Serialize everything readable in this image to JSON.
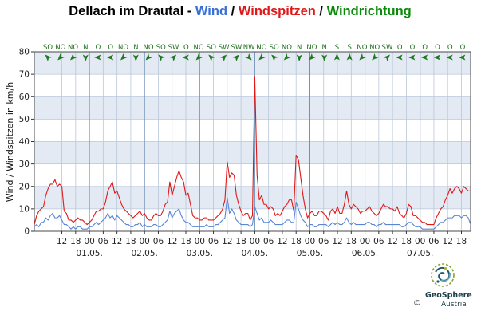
{
  "chart_data": {
    "type": "line",
    "title_parts": [
      {
        "text": "Dellach im Drautal - ",
        "color": "#000000"
      },
      {
        "text": "Wind",
        "color": "#3a6fd8"
      },
      {
        "text": " / ",
        "color": "#000000"
      },
      {
        "text": "Windspitzen",
        "color": "#e01818"
      },
      {
        "text": " / ",
        "color": "#000000"
      },
      {
        "text": "Windrichtung",
        "color": "#0a8a0a"
      }
    ],
    "ylabel": "Wind / Windspitzen in km/h",
    "ylim": [
      0,
      80
    ],
    "yticks": [
      "0",
      "10",
      "20",
      "30",
      "40",
      "50",
      "60",
      "70",
      "80"
    ],
    "x_ticks": [
      "12",
      "18",
      "00",
      "06",
      "12",
      "18",
      "00",
      "06",
      "12",
      "18",
      "00",
      "06",
      "12",
      "18",
      "00",
      "06",
      "12",
      "18",
      "00",
      "06",
      "12",
      "18",
      "00",
      "06",
      "12",
      "18",
      "00",
      "06",
      "12",
      "18"
    ],
    "x_tick_hours": [
      12,
      18,
      24,
      30,
      36,
      42,
      48,
      54,
      60,
      66,
      72,
      78,
      84,
      90,
      96,
      102,
      108,
      114,
      120,
      126,
      132,
      138,
      144,
      150,
      156,
      162,
      168,
      174,
      180,
      186
    ],
    "date_labels": [
      {
        "label": "01.05.",
        "hour": 24
      },
      {
        "label": "02.05.",
        "hour": 48
      },
      {
        "label": "03.05.",
        "hour": 72
      },
      {
        "label": "04.05.",
        "hour": 96
      },
      {
        "label": "05.05.",
        "hour": 120
      },
      {
        "label": "06.05.",
        "hour": 144
      },
      {
        "label": "07.05.",
        "hour": 168
      }
    ],
    "x_range_hours": [
      0,
      190
    ],
    "series": [
      {
        "name": "Windspitzen",
        "color": "#e01818",
        "x": [
          0,
          1,
          2,
          3,
          4,
          5,
          6,
          7,
          8,
          9,
          10,
          11,
          12,
          13,
          14,
          15,
          16,
          17,
          18,
          19,
          20,
          21,
          22,
          23,
          24,
          25,
          26,
          27,
          28,
          29,
          30,
          31,
          32,
          33,
          34,
          35,
          36,
          37,
          38,
          39,
          40,
          41,
          42,
          43,
          44,
          45,
          46,
          47,
          48,
          49,
          50,
          51,
          52,
          53,
          54,
          55,
          56,
          57,
          58,
          59,
          60,
          61,
          62,
          63,
          64,
          65,
          66,
          67,
          68,
          69,
          70,
          71,
          72,
          73,
          74,
          75,
          76,
          77,
          78,
          79,
          80,
          81,
          82,
          83,
          84,
          85,
          86,
          87,
          88,
          89,
          90,
          91,
          92,
          93,
          94,
          95,
          96,
          97,
          98,
          99,
          100,
          101,
          102,
          103,
          104,
          105,
          106,
          107,
          108,
          109,
          110,
          111,
          112,
          113,
          114,
          115,
          116,
          117,
          118,
          119,
          120,
          121,
          122,
          123,
          124,
          125,
          126,
          127,
          128,
          129,
          130,
          131,
          132,
          133,
          134,
          135,
          136,
          137,
          138,
          139,
          140,
          141,
          142,
          143,
          144,
          145,
          146,
          147,
          148,
          149,
          150,
          151,
          152,
          153,
          154,
          155,
          156,
          157,
          158,
          159,
          160,
          161,
          162,
          163,
          164,
          165,
          166,
          167,
          168,
          169,
          170,
          171,
          172,
          173,
          174,
          175,
          176,
          177,
          178,
          179,
          180,
          181,
          182,
          183,
          184,
          185,
          186,
          187,
          188,
          189,
          190
        ],
        "values": [
          3,
          7,
          9,
          10,
          11,
          16,
          19,
          21,
          21,
          23,
          20,
          21,
          20,
          9,
          8,
          5,
          5,
          4,
          5,
          6,
          5,
          5,
          4,
          3,
          4,
          5,
          7,
          9,
          9,
          10,
          10,
          13,
          18,
          20,
          22,
          17,
          18,
          15,
          12,
          10,
          9,
          8,
          7,
          6,
          7,
          8,
          9,
          7,
          8,
          6,
          5,
          5,
          7,
          8,
          7,
          7,
          9,
          12,
          13,
          22,
          16,
          20,
          24,
          27,
          24,
          22,
          16,
          17,
          12,
          7,
          6,
          6,
          5,
          5,
          6,
          6,
          5,
          5,
          5,
          6,
          7,
          8,
          10,
          14,
          31,
          24,
          26,
          25,
          16,
          12,
          9,
          7,
          8,
          8,
          5,
          7,
          69,
          25,
          14,
          16,
          12,
          12,
          10,
          11,
          10,
          7,
          8,
          7,
          9,
          11,
          12,
          14,
          14,
          9,
          34,
          32,
          24,
          16,
          10,
          6,
          8,
          9,
          7,
          7,
          9,
          9,
          8,
          7,
          5,
          9,
          10,
          8,
          11,
          8,
          8,
          12,
          18,
          12,
          10,
          12,
          11,
          10,
          8,
          9,
          9,
          10,
          11,
          9,
          8,
          7,
          8,
          10,
          12,
          11,
          11,
          10,
          10,
          9,
          11,
          8,
          7,
          6,
          8,
          12,
          11,
          7,
          7,
          6,
          5,
          4,
          4,
          3,
          3,
          3,
          3,
          6,
          8,
          10,
          11,
          14,
          16,
          19,
          17,
          19,
          20,
          19,
          17,
          20,
          19,
          18,
          18
        ]
      },
      {
        "name": "Wind",
        "color": "#5a86d6",
        "x": [
          0,
          1,
          2,
          3,
          4,
          5,
          6,
          7,
          8,
          9,
          10,
          11,
          12,
          13,
          14,
          15,
          16,
          17,
          18,
          19,
          20,
          21,
          22,
          23,
          24,
          25,
          26,
          27,
          28,
          29,
          30,
          31,
          32,
          33,
          34,
          35,
          36,
          37,
          38,
          39,
          40,
          41,
          42,
          43,
          44,
          45,
          46,
          47,
          48,
          49,
          50,
          51,
          52,
          53,
          54,
          55,
          56,
          57,
          58,
          59,
          60,
          61,
          62,
          63,
          64,
          65,
          66,
          67,
          68,
          69,
          70,
          71,
          72,
          73,
          74,
          75,
          76,
          77,
          78,
          79,
          80,
          81,
          82,
          83,
          84,
          85,
          86,
          87,
          88,
          89,
          90,
          91,
          92,
          93,
          94,
          95,
          96,
          97,
          98,
          99,
          100,
          101,
          102,
          103,
          104,
          105,
          106,
          107,
          108,
          109,
          110,
          111,
          112,
          113,
          114,
          115,
          116,
          117,
          118,
          119,
          120,
          121,
          122,
          123,
          124,
          125,
          126,
          127,
          128,
          129,
          130,
          131,
          132,
          133,
          134,
          135,
          136,
          137,
          138,
          139,
          140,
          141,
          142,
          143,
          144,
          145,
          146,
          147,
          148,
          149,
          150,
          151,
          152,
          153,
          154,
          155,
          156,
          157,
          158,
          159,
          160,
          161,
          162,
          163,
          164,
          165,
          166,
          167,
          168,
          169,
          170,
          171,
          172,
          173,
          174,
          175,
          176,
          177,
          178,
          179,
          180,
          181,
          182,
          183,
          184,
          185,
          186,
          187,
          188,
          189,
          190
        ],
        "values": [
          2,
          3,
          2,
          4,
          4,
          6,
          5,
          7,
          8,
          6,
          6,
          7,
          5,
          3,
          3,
          2,
          1,
          2,
          1,
          2,
          2,
          1,
          1,
          1,
          2,
          2,
          3,
          4,
          3,
          4,
          5,
          6,
          8,
          6,
          7,
          5,
          7,
          6,
          5,
          4,
          3,
          3,
          2,
          2,
          3,
          3,
          4,
          2,
          3,
          2,
          2,
          2,
          3,
          3,
          2,
          2,
          3,
          4,
          5,
          9,
          6,
          8,
          9,
          10,
          7,
          5,
          4,
          4,
          3,
          2,
          2,
          2,
          2,
          2,
          2,
          3,
          2,
          2,
          2,
          3,
          3,
          4,
          5,
          6,
          15,
          8,
          10,
          8,
          5,
          4,
          3,
          3,
          3,
          3,
          2,
          3,
          11,
          8,
          5,
          6,
          4,
          4,
          4,
          5,
          4,
          3,
          3,
          3,
          3,
          4,
          5,
          5,
          4,
          4,
          13,
          10,
          7,
          5,
          4,
          2,
          3,
          3,
          2,
          2,
          3,
          3,
          3,
          3,
          2,
          3,
          4,
          3,
          4,
          3,
          3,
          4,
          6,
          4,
          3,
          4,
          3,
          3,
          3,
          3,
          3,
          4,
          4,
          3,
          3,
          2,
          3,
          3,
          4,
          3,
          3,
          3,
          3,
          3,
          3,
          3,
          2,
          2,
          3,
          4,
          4,
          3,
          2,
          2,
          2,
          1,
          1,
          1,
          1,
          1,
          1,
          2,
          3,
          4,
          4,
          5,
          6,
          6,
          6,
          7,
          7,
          7,
          6,
          7,
          7,
          6,
          3
        ]
      }
    ],
    "directions": [
      "SO",
      "NO",
      "NO",
      "N",
      "O",
      "O",
      "NO",
      "N",
      "NO",
      "SO",
      "SW",
      "O",
      "NO",
      "SO",
      "SW",
      "SW",
      "NW",
      "NO",
      "SO",
      "NO",
      "N",
      "NO",
      "N",
      "S",
      "S",
      "NO",
      "NO",
      "SW",
      "O",
      "O",
      "O",
      "O",
      "O",
      "O"
    ],
    "grid": true
  },
  "brand": {
    "name": "GeoSphere",
    "sub": "Austria",
    "copyright": "©"
  }
}
